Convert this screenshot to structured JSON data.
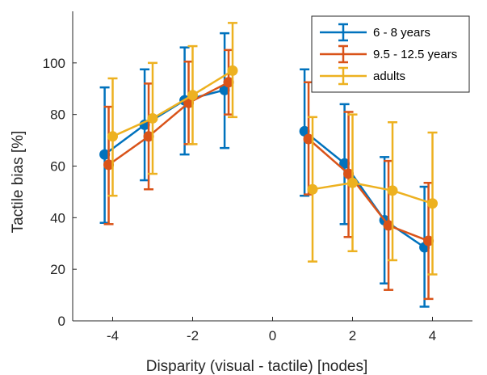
{
  "chart_data": {
    "type": "line",
    "title": "",
    "xlabel": "Disparity (visual - tactile)   [nodes]",
    "ylabel": "Tactile bias   [%]",
    "xlim": [
      -5,
      5
    ],
    "ylim": [
      0,
      120
    ],
    "x_ticks": [
      -4,
      -2,
      0,
      2,
      4
    ],
    "y_ticks": [
      0,
      20,
      40,
      60,
      80,
      100
    ],
    "grid": false,
    "legend_position": "top-right",
    "series": [
      {
        "name": "6 - 8 years",
        "color": "#0072BD",
        "points": [
          {
            "x": -4.2,
            "y": 64.5,
            "err_low": 38,
            "err_high": 90.5
          },
          {
            "x": -3.2,
            "y": 76,
            "err_low": 54.5,
            "err_high": 97.5
          },
          {
            "x": -2.2,
            "y": 85.5,
            "err_low": 64.5,
            "err_high": 106
          },
          {
            "x": -1.2,
            "y": 89.5,
            "err_low": 67,
            "err_high": 111.5
          }
        ],
        "points_right": [
          {
            "x": 0.8,
            "y": 73.5,
            "err_low": 48.5,
            "err_high": 97.5
          },
          {
            "x": 1.8,
            "y": 61,
            "err_low": 37.5,
            "err_high": 84
          },
          {
            "x": 2.8,
            "y": 39,
            "err_low": 14.5,
            "err_high": 63.5
          },
          {
            "x": 3.8,
            "y": 28.5,
            "err_low": 5.5,
            "err_high": 52
          }
        ]
      },
      {
        "name": "9.5 - 12.5 years",
        "color": "#D95319",
        "points": [
          {
            "x": -4.1,
            "y": 60.5,
            "err_low": 37.5,
            "err_high": 83
          },
          {
            "x": -3.1,
            "y": 71.5,
            "err_low": 51,
            "err_high": 92
          },
          {
            "x": -2.1,
            "y": 84.5,
            "err_low": 68.5,
            "err_high": 100.5
          },
          {
            "x": -1.1,
            "y": 92.5,
            "err_low": 80,
            "err_high": 105
          }
        ],
        "points_right": [
          {
            "x": 0.9,
            "y": 70.5,
            "err_low": 49,
            "err_high": 92.5
          },
          {
            "x": 1.9,
            "y": 57,
            "err_low": 32.5,
            "err_high": 81
          },
          {
            "x": 2.9,
            "y": 37,
            "err_low": 12,
            "err_high": 62
          },
          {
            "x": 3.9,
            "y": 31,
            "err_low": 8.5,
            "err_high": 53.5
          }
        ]
      },
      {
        "name": "adults",
        "color": "#EDB120",
        "points": [
          {
            "x": -4.0,
            "y": 71.5,
            "err_low": 48.5,
            "err_high": 94
          },
          {
            "x": -3.0,
            "y": 78.5,
            "err_low": 57,
            "err_high": 100
          },
          {
            "x": -2.0,
            "y": 87.5,
            "err_low": 68.5,
            "err_high": 106.5
          },
          {
            "x": -1.0,
            "y": 97,
            "err_low": 79,
            "err_high": 115.5
          }
        ],
        "points_right": [
          {
            "x": 1.0,
            "y": 51,
            "err_low": 23,
            "err_high": 79
          },
          {
            "x": 2.0,
            "y": 53.5,
            "err_low": 27,
            "err_high": 80
          },
          {
            "x": 3.0,
            "y": 50.5,
            "err_low": 23.5,
            "err_high": 77
          },
          {
            "x": 4.0,
            "y": 45.5,
            "err_low": 18,
            "err_high": 73
          }
        ]
      }
    ]
  }
}
